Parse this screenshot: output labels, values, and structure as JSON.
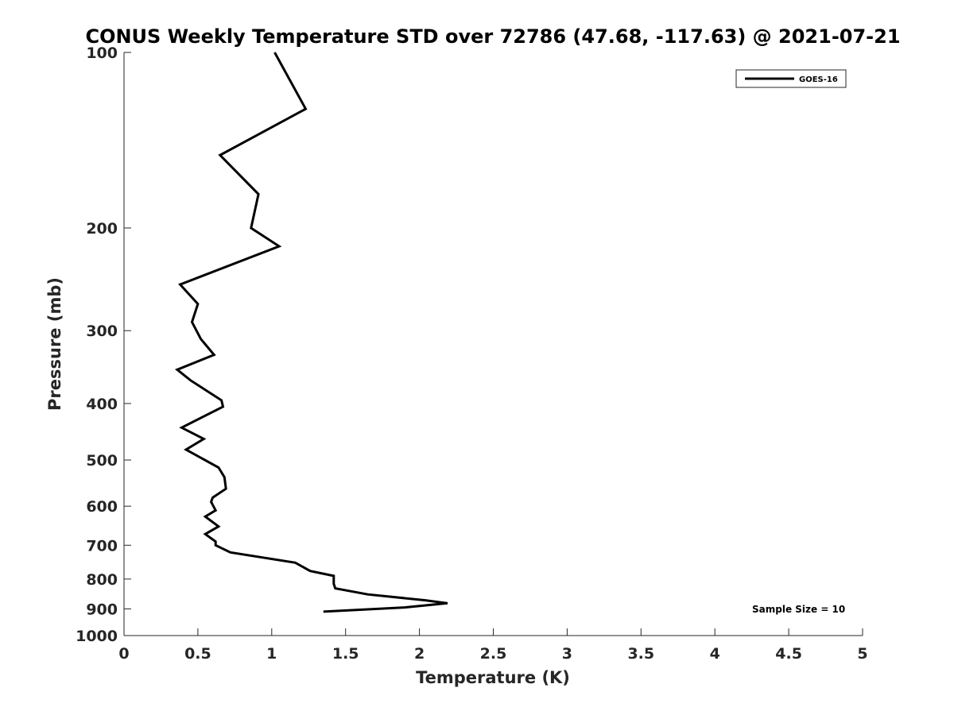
{
  "chart_data": {
    "type": "line",
    "title": "CONUS Weekly Temperature STD over 72786 (47.68, -117.63) @ 2021-07-21",
    "xlabel": "Temperature (K)",
    "ylabel": "Pressure (mb)",
    "xlim": [
      0,
      5
    ],
    "ylim": [
      100,
      1000
    ],
    "y_scale": "log",
    "y_reversed": true,
    "x_ticks": [
      "0",
      "0.5",
      "1",
      "1.5",
      "2",
      "2.5",
      "3",
      "3.5",
      "4",
      "4.5",
      "5"
    ],
    "y_ticks": [
      "100",
      "200",
      "300",
      "400",
      "500",
      "600",
      "700",
      "800",
      "900",
      "1000"
    ],
    "grid": false,
    "legend": {
      "position": "top-right",
      "entries": [
        "GOES-16"
      ]
    },
    "annotation": "Sample Size = 10",
    "series": [
      {
        "name": "GOES-16",
        "color": "#000000",
        "points": [
          [
            1.02,
            100
          ],
          [
            1.23,
            125
          ],
          [
            0.65,
            150
          ],
          [
            0.91,
            175
          ],
          [
            0.86,
            200
          ],
          [
            1.05,
            215
          ],
          [
            0.38,
            250
          ],
          [
            0.5,
            270
          ],
          [
            0.46,
            290
          ],
          [
            0.52,
            310
          ],
          [
            0.61,
            330
          ],
          [
            0.36,
            350
          ],
          [
            0.45,
            365
          ],
          [
            0.66,
            395
          ],
          [
            0.67,
            405
          ],
          [
            0.39,
            440
          ],
          [
            0.54,
            460
          ],
          [
            0.42,
            480
          ],
          [
            0.64,
            515
          ],
          [
            0.68,
            535
          ],
          [
            0.69,
            560
          ],
          [
            0.6,
            580
          ],
          [
            0.59,
            590
          ],
          [
            0.62,
            610
          ],
          [
            0.55,
            625
          ],
          [
            0.64,
            650
          ],
          [
            0.55,
            670
          ],
          [
            0.62,
            690
          ],
          [
            0.62,
            700
          ],
          [
            0.72,
            720
          ],
          [
            1.16,
            750
          ],
          [
            1.26,
            775
          ],
          [
            1.42,
            790
          ],
          [
            1.42,
            815
          ],
          [
            1.43,
            830
          ],
          [
            1.65,
            850
          ],
          [
            2.04,
            870
          ],
          [
            2.19,
            880
          ],
          [
            1.9,
            895
          ],
          [
            1.35,
            910
          ]
        ]
      }
    ]
  }
}
